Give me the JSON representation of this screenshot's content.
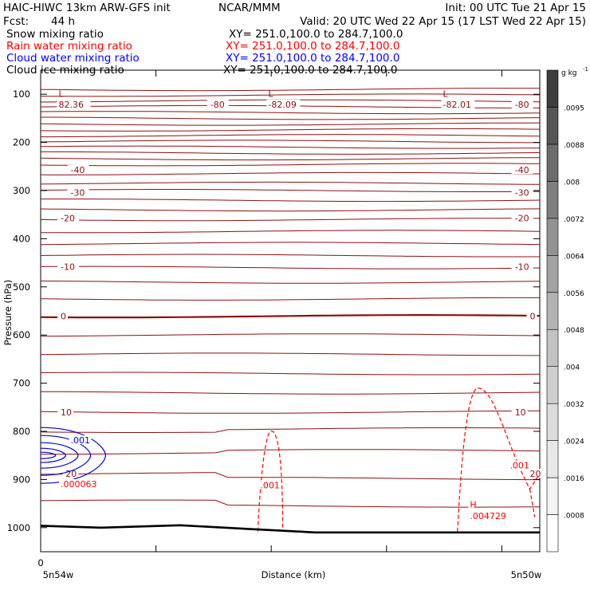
{
  "header": {
    "model": "HAIC-HIWC 13km ARW-GFS init",
    "org": "NCAR/MMM",
    "init": "Init: 00 UTC Tue 21 Apr 15",
    "fcst_label": "Fcst:",
    "fcst_value": "44 h",
    "valid": "Valid: 20 UTC Wed 22 Apr 15 (17 LST Wed 22 Apr 15)"
  },
  "fields": [
    {
      "label": "Snow mixing ratio",
      "xy": "XY= 251.0,100.0 to 284.7,100.0",
      "color": "#000000"
    },
    {
      "label": "Rain water mixing ratio",
      "xy": "XY= 251.0,100.0 to 284.7,100.0",
      "color": "#ff0000"
    },
    {
      "label": "Cloud water mixing ratio",
      "xy": "XY= 251.0,100.0 to 284.7,100.0",
      "color": "#0000ff"
    },
    {
      "label": "Cloud ice mixing ratio",
      "xy": "XY= 251.0,100.0 to 284.7,100.0",
      "color": "#000000"
    }
  ],
  "chart_data": {
    "type": "contour-cross-section",
    "ylabel": "Pressure (hPa)",
    "xlabel": "Distance (km)",
    "x_start_label": "5n54w",
    "x_end_label": "5n50w",
    "x_zero_label": "0",
    "ylim": [
      1050,
      50
    ],
    "y_ticks": [
      100,
      200,
      300,
      400,
      500,
      600,
      700,
      800,
      900,
      1000
    ],
    "x_minor_ticks": [
      0.0,
      0.231,
      0.462,
      0.693,
      0.924
    ],
    "colorbar": {
      "units": "g kg",
      "units_exp": "-1",
      "ticks": [
        ".0008",
        ".0016",
        ".0024",
        ".0032",
        ".004",
        ".0048",
        ".0056",
        ".0064",
        ".0072",
        ".008",
        ".0088",
        ".0095"
      ],
      "shades": [
        "#ffffff",
        "#f4f4f4",
        "#e8e8e8",
        "#dcdcdc",
        "#cfcfcf",
        "#c2c2c2",
        "#b3b3b3",
        "#a3a3a3",
        "#929292",
        "#7f7f7f",
        "#6b6b6b",
        "#555555",
        "#3e3e3e"
      ]
    },
    "temperature_isotherms": [
      {
        "label": "-80",
        "p": 121,
        "label_x": [
          0.34,
          0.95
        ]
      },
      {
        "label": "-40",
        "p": 257,
        "label_x": [
          0.06,
          0.95
        ]
      },
      {
        "label": "-30",
        "p": 304,
        "label_x": [
          0.06,
          0.95
        ]
      },
      {
        "label": "-20",
        "p": 357,
        "label_x": [
          0.04,
          0.95
        ]
      },
      {
        "label": "-10",
        "p": 458,
        "label_x": [
          0.04,
          0.95
        ]
      },
      {
        "label": "0",
        "p": 561,
        "label_x": [
          0.04,
          0.98
        ]
      },
      {
        "label": "10",
        "p": 760,
        "label_x": [
          0.04,
          0.95
        ]
      },
      {
        "label": "20",
        "p": 888,
        "label_x": [
          0.05,
          0.98
        ]
      }
    ],
    "temperature_extrema": [
      {
        "symbol": "L",
        "value": "82.36",
        "x": 0.02
      },
      {
        "symbol": "L",
        "value": "-82.09",
        "x": 0.44
      },
      {
        "symbol": "L",
        "value": "-82.01",
        "x": 0.79
      }
    ],
    "rain_labels": [
      {
        "text": ".001",
        "x": 0.44,
        "p": 913
      },
      {
        "text": ".001",
        "x": 0.94,
        "p": 872
      },
      {
        "text": ".000063",
        "x": 0.04,
        "p": 911
      },
      {
        "text": "H",
        "x": 0.86,
        "p": 953
      },
      {
        "text": ".004729",
        "x": 0.86,
        "p": 977
      }
    ],
    "cloud_water_labels": [
      {
        "text": ".001",
        "x": 0.06,
        "p": 820
      }
    ]
  }
}
